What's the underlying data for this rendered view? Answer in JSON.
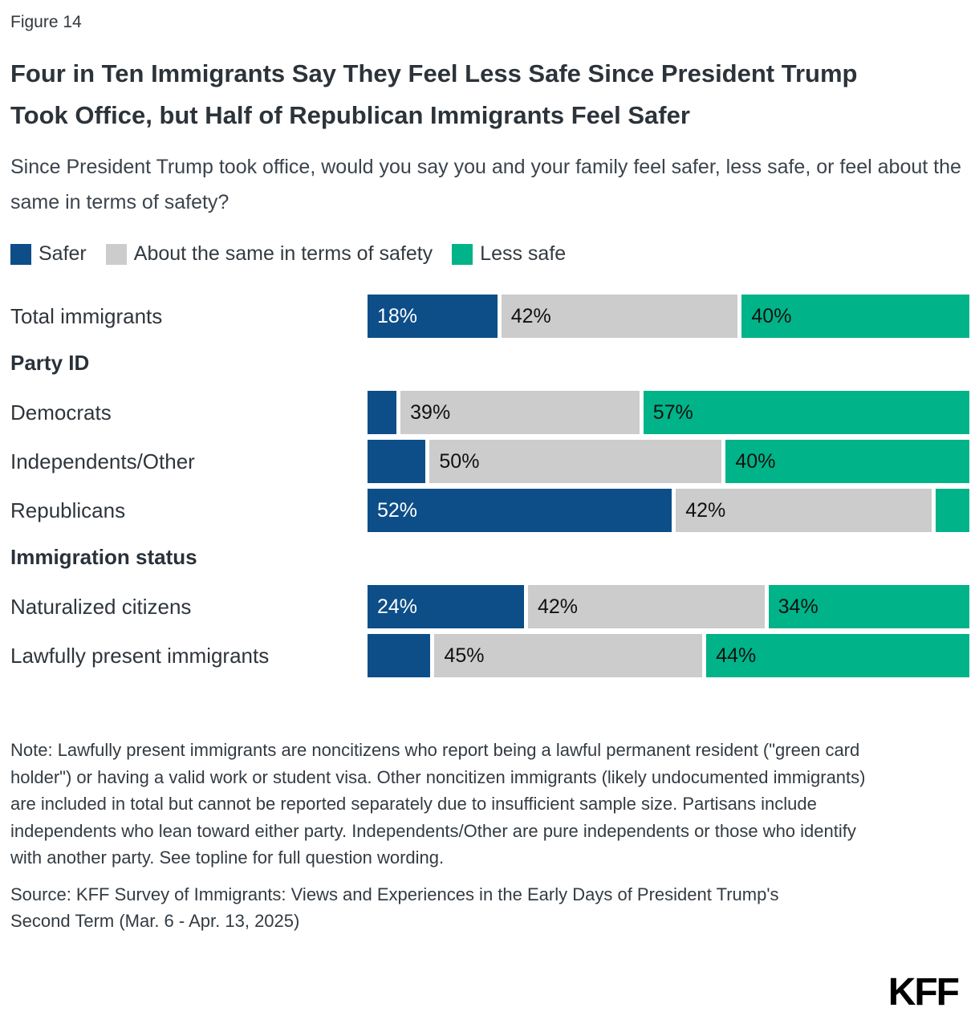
{
  "figure_label": "Figure 14",
  "title": "Four in Ten Immigrants Say They Feel Less Safe Since President Trump Took Office, but Half of Republican Immigrants Feel Safer",
  "subtitle": "Since President Trump took office, would you say you and your family feel safer, less safe, or feel about the same in terms of safety?",
  "note": "Note: Lawfully present immigrants are noncitizens who report being a lawful permanent resident (\"green card holder\") or having a valid work or student visa. Other noncitizen immigrants (likely undocumented immigrants) are included in total but cannot be reported separately due to insufficient sample size. Partisans include independents who lean toward either party. Independents/Other are pure independents or those who identify with another party. See topline for full question wording.",
  "source": "Source: KFF Survey of Immigrants: Views and Experiences in the Early Days of President Trump's Second Term (Mar. 6 - Apr. 13, 2025)",
  "logo_text": "KFF",
  "chart_data": {
    "type": "bar",
    "stacked": true,
    "orientation": "horizontal",
    "legend_position": "top",
    "xlim": [
      0,
      100
    ],
    "colors": {
      "safer": "#0d4e89",
      "same": "#cccccc",
      "less_safe": "#00b388"
    },
    "legend": [
      {
        "label": "Safer",
        "color": "#0d4e89"
      },
      {
        "label": "About the same in terms of safety",
        "color": "#cccccc"
      },
      {
        "label": "Less safe",
        "color": "#00b388"
      }
    ],
    "series_names": [
      "Safer",
      "About the same in terms of safety",
      "Less safe"
    ],
    "section_headers": {
      "party_id": "Party ID",
      "immigration_status": "Immigration status"
    },
    "rows": [
      {
        "label": "Total immigrants",
        "values": [
          18,
          42,
          40
        ],
        "labels": [
          "18%",
          "42%",
          "40%"
        ]
      },
      {
        "label": "Democrats",
        "values": [
          4,
          39,
          57
        ],
        "labels": [
          "",
          "39%",
          "57%"
        ]
      },
      {
        "label": "Independents/Other",
        "values": [
          10,
          50,
          40
        ],
        "labels": [
          "",
          "50%",
          "40%"
        ]
      },
      {
        "label": "Republicans",
        "values": [
          52,
          42,
          5
        ],
        "labels": [
          "52%",
          "42%",
          ""
        ]
      },
      {
        "label": "Naturalized citizens",
        "values": [
          24,
          42,
          34
        ],
        "labels": [
          "24%",
          "42%",
          "34%"
        ]
      },
      {
        "label": "Lawfully present immigrants",
        "values": [
          11,
          45,
          44
        ],
        "labels": [
          "",
          "45%",
          "44%"
        ]
      }
    ]
  }
}
